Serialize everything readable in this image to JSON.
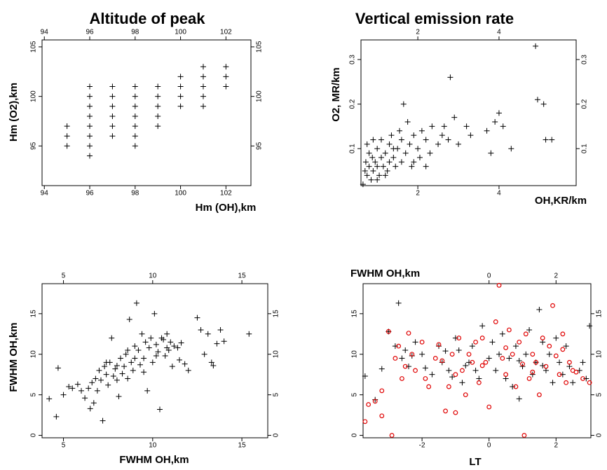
{
  "chart_data": [
    {
      "type": "scatter",
      "title": "Altitude of peak",
      "x_label": "Hm (OH),km",
      "y_label": "Hm (O2),km",
      "xlim": [
        93.9,
        103.1
      ],
      "ylim": [
        91,
        105.7
      ],
      "xticks": [
        94,
        96,
        98,
        100,
        102
      ],
      "yticks": [
        95,
        100,
        105
      ],
      "series": [
        {
          "color": "#000000",
          "marker": "plus",
          "x": [
            95,
            95,
            95,
            96,
            96,
            96,
            96,
            96,
            96,
            96,
            96,
            97,
            97,
            97,
            97,
            97,
            97,
            98,
            98,
            98,
            98,
            98,
            98,
            98,
            99,
            99,
            99,
            99,
            99,
            100,
            100,
            100,
            100,
            101,
            101,
            101,
            101,
            101,
            102,
            102,
            102
          ],
          "values": [
            95,
            96,
            97,
            94,
            95,
            96,
            97,
            98,
            99,
            100,
            101,
            96,
            97,
            98,
            99,
            100,
            101,
            95,
            96,
            97,
            98,
            99,
            100,
            101,
            97,
            98,
            99,
            100,
            101,
            99,
            100,
            101,
            102,
            99,
            100,
            101,
            102,
            103,
            101,
            102,
            103
          ]
        }
      ]
    },
    {
      "type": "scatter",
      "title": "Vertical emission rate",
      "x_label": "OH,KR/km",
      "y_label": "O2, MR/km",
      "xlim": [
        0.6,
        5.9
      ],
      "ylim": [
        0.017,
        0.344
      ],
      "xticks": [
        2,
        4
      ],
      "yticks": [
        0.1,
        0.2,
        0.3
      ],
      "series": [
        {
          "color": "#000000",
          "marker": "plus",
          "x": [
            0.65,
            0.7,
            0.72,
            0.75,
            0.8,
            0.8,
            0.85,
            0.88,
            0.9,
            0.95,
            1.0,
            1.0,
            1.05,
            1.1,
            1.1,
            1.15,
            1.2,
            1.25,
            1.3,
            1.3,
            1.35,
            1.4,
            1.45,
            1.5,
            1.55,
            1.6,
            1.6,
            1.65,
            1.7,
            1.75,
            1.8,
            1.85,
            1.9,
            2.0,
            2.05,
            2.1,
            2.2,
            2.3,
            2.35,
            2.5,
            2.6,
            2.65,
            2.75,
            2.8,
            2.9,
            3.0,
            3.2,
            3.3,
            3.7,
            3.8,
            3.9,
            4.0,
            4.1,
            4.3,
            4.9,
            4.95,
            5.1,
            5.15,
            5.3,
            1.0,
            1.2,
            0.9,
            1.4,
            1.9,
            2.2,
            0.75
          ],
          "values": [
            0.02,
            0.05,
            0.07,
            0.04,
            0.06,
            0.09,
            0.03,
            0.08,
            0.05,
            0.07,
            0.06,
            0.1,
            0.04,
            0.08,
            0.12,
            0.06,
            0.09,
            0.05,
            0.07,
            0.11,
            0.13,
            0.08,
            0.06,
            0.1,
            0.14,
            0.07,
            0.12,
            0.2,
            0.09,
            0.16,
            0.11,
            0.06,
            0.13,
            0.1,
            0.08,
            0.14,
            0.12,
            0.09,
            0.15,
            0.11,
            0.13,
            0.15,
            0.12,
            0.26,
            0.17,
            0.11,
            0.15,
            0.13,
            0.14,
            0.09,
            0.16,
            0.18,
            0.15,
            0.1,
            0.33,
            0.21,
            0.2,
            0.12,
            0.12,
            0.03,
            0.04,
            0.12,
            0.1,
            0.07,
            0.06,
            0.11
          ]
        }
      ]
    },
    {
      "type": "scatter",
      "x_label": "FWHM OH,km",
      "y_label": "FWHM OH,km",
      "xlim": [
        3.8,
        16.45
      ],
      "ylim": [
        -0.3,
        18.7
      ],
      "xticks": [
        5,
        10,
        15
      ],
      "yticks": [
        0,
        5,
        10,
        15
      ],
      "series": [
        {
          "color": "#000000",
          "marker": "plus",
          "x": [
            4.2,
            4.6,
            4.7,
            5.0,
            5.3,
            5.5,
            5.8,
            6.0,
            6.2,
            6.4,
            6.5,
            6.6,
            6.7,
            6.8,
            6.9,
            7.0,
            7.1,
            7.2,
            7.3,
            7.4,
            7.5,
            7.6,
            7.7,
            7.8,
            7.9,
            8.0,
            8.1,
            8.2,
            8.3,
            8.4,
            8.5,
            8.6,
            8.7,
            8.8,
            8.9,
            9.0,
            9.1,
            9.2,
            9.3,
            9.4,
            9.5,
            9.6,
            9.7,
            9.8,
            9.9,
            10.0,
            10.1,
            10.2,
            10.3,
            10.4,
            10.5,
            10.6,
            10.7,
            10.8,
            10.9,
            11.0,
            11.1,
            11.2,
            11.4,
            11.5,
            11.6,
            11.8,
            12.0,
            12.5,
            12.7,
            12.9,
            13.1,
            13.3,
            13.4,
            13.6,
            13.8,
            14.0,
            15.4,
            8.0,
            8.6,
            9.5,
            10.2,
            10.8,
            7.4,
            9.0
          ],
          "values": [
            4.5,
            2.3,
            8.3,
            5,
            6,
            5.8,
            6.3,
            5.5,
            4.6,
            5.8,
            3.3,
            6.5,
            4,
            7,
            5.5,
            8,
            6.8,
            1.8,
            8.5,
            7.5,
            6.2,
            9,
            12,
            7.3,
            8.2,
            6.8,
            4.8,
            9.5,
            7.6,
            8.5,
            10,
            7,
            14.3,
            9,
            8,
            11,
            16.3,
            10.5,
            8.7,
            12.5,
            9.5,
            11.5,
            5.5,
            10.8,
            12,
            9,
            15,
            11.2,
            10.3,
            3.2,
            12,
            11.8,
            9.8,
            12.5,
            10.5,
            11.5,
            8.5,
            11,
            10.8,
            9.3,
            11.4,
            8.8,
            8,
            14.5,
            13,
            10,
            12.5,
            9,
            8.6,
            11.3,
            13,
            11.6,
            12.5,
            8.6,
            10.5,
            7.8,
            9.8,
            10.8,
            9.0,
            9.5
          ]
        }
      ]
    },
    {
      "type": "scatter",
      "x_label": "LT",
      "y_label": "FWHM OH,km",
      "xlim": [
        -3.76,
        3.04
      ],
      "ylim": [
        -0.3,
        18.7
      ],
      "xticks": [
        -2,
        0,
        2
      ],
      "x2ticks": [
        0,
        2
      ],
      "yticks": [
        0,
        5,
        10,
        15
      ],
      "series": [
        {
          "color": "#000000",
          "marker": "plus",
          "x": [
            -3.7,
            -3.4,
            -3.2,
            -3.0,
            -2.8,
            -2.7,
            -2.6,
            -2.5,
            -2.4,
            -2.2,
            -2.0,
            -1.9,
            -1.7,
            -1.5,
            -1.4,
            -1.2,
            -1.1,
            -1.0,
            -0.9,
            -0.8,
            -0.6,
            -0.5,
            -0.4,
            -0.3,
            -0.2,
            0.0,
            0.1,
            0.2,
            0.3,
            0.4,
            0.5,
            0.6,
            0.7,
            0.8,
            0.9,
            1.0,
            1.1,
            1.2,
            1.3,
            1.4,
            1.5,
            1.6,
            1.7,
            1.8,
            1.9,
            2.0,
            2.1,
            2.2,
            2.3,
            2.4,
            2.5,
            2.7,
            2.8,
            2.9,
            3.0,
            -2.3,
            -0.7,
            0.9,
            1.6,
            -1.3
          ],
          "values": [
            7.3,
            4.4,
            8.2,
            12.8,
            11,
            16.3,
            9.5,
            10.5,
            8.5,
            11.5,
            10,
            8.3,
            7.5,
            11,
            9,
            8,
            7.2,
            12,
            10.5,
            6.5,
            9,
            11,
            8,
            7,
            13.5,
            9.5,
            11.5,
            8,
            10,
            12.5,
            7,
            9.5,
            6,
            11,
            4.5,
            8.5,
            10,
            13,
            7.5,
            9,
            15.5,
            11.5,
            8,
            10,
            6.5,
            12,
            9,
            7.5,
            11,
            8.5,
            6.5,
            8,
            9,
            7,
            13.5,
            9.8,
            8.6,
            9.2,
            8.6,
            10.4
          ]
        },
        {
          "color": "#e00000",
          "marker": "circle",
          "x": [
            -3.7,
            -3.6,
            -3.4,
            -3.2,
            -3.2,
            -3.0,
            -2.9,
            -2.8,
            -2.7,
            -2.6,
            -2.4,
            -2.3,
            -2.2,
            -2.0,
            -1.9,
            -1.8,
            -1.6,
            -1.5,
            -1.3,
            -1.2,
            -1.1,
            -1.0,
            -1.0,
            -0.9,
            -0.8,
            -0.7,
            -0.6,
            -0.5,
            -0.4,
            -0.3,
            -0.2,
            -0.1,
            0.0,
            0.2,
            0.3,
            0.4,
            0.5,
            0.6,
            0.7,
            0.8,
            0.9,
            1.0,
            1.05,
            1.1,
            1.2,
            1.3,
            1.4,
            1.5,
            1.6,
            1.7,
            1.8,
            1.9,
            2.0,
            2.1,
            2.2,
            2.3,
            2.4,
            2.5,
            2.6,
            2.8,
            3.0,
            -2.5,
            -0.2,
            1.3,
            2.2,
            0.5,
            -1.4
          ],
          "values": [
            1.7,
            3.8,
            4.2,
            5.5,
            2.4,
            12.8,
            0,
            9.5,
            11,
            7,
            12.6,
            10,
            8,
            11.5,
            7,
            6,
            9.5,
            11.2,
            3,
            6,
            10,
            7.5,
            2.8,
            12,
            8,
            5,
            10,
            9,
            11.5,
            6.5,
            12,
            9,
            3.5,
            14,
            18.5,
            9.5,
            7.5,
            13,
            10,
            6,
            11.5,
            8.8,
            0,
            12.5,
            7,
            10,
            9,
            5,
            12,
            8.5,
            11,
            16,
            9.8,
            7.5,
            12.5,
            6.5,
            9,
            8,
            7.8,
            7,
            6.5,
            8.5,
            8.6,
            7.8,
            10.6,
            10.8,
            9.2
          ]
        }
      ]
    }
  ]
}
